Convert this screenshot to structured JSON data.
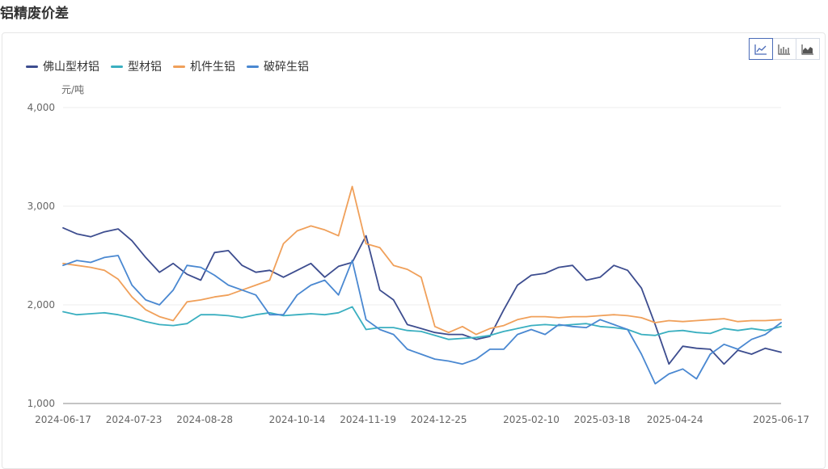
{
  "page_title": "铝精废价差",
  "toolbar": {
    "icons": [
      "line-chart-icon",
      "bar-chart-icon",
      "area-chart-icon"
    ],
    "active": "line-chart-icon",
    "active_color": "#4a6bb8"
  },
  "chart_data": {
    "type": "line",
    "ylabel": "元/吨",
    "ylim": [
      1000,
      4000
    ],
    "yticks": [
      1000,
      2000,
      3000,
      4000
    ],
    "ytick_labels": [
      "1,000",
      "2,000",
      "3,000",
      "4,000"
    ],
    "grid": true,
    "legend_position": "top-left",
    "x_start": "2024-06-17",
    "x_end": "2025-06-17",
    "xtick_labels": [
      "2024-06-17",
      "2024-07-23",
      "2024-08-28",
      "2024-10-14",
      "2024-11-19",
      "2024-12-25",
      "2025-02-10",
      "2025-03-18",
      "2025-04-24",
      "2025-06-17"
    ],
    "x": [
      "2024-06-17",
      "2024-06-24",
      "2024-07-01",
      "2024-07-08",
      "2024-07-15",
      "2024-07-22",
      "2024-07-29",
      "2024-08-05",
      "2024-08-12",
      "2024-08-19",
      "2024-08-26",
      "2024-09-02",
      "2024-09-09",
      "2024-09-16",
      "2024-09-23",
      "2024-09-30",
      "2024-10-07",
      "2024-10-14",
      "2024-10-21",
      "2024-10-28",
      "2024-11-04",
      "2024-11-11",
      "2024-11-18",
      "2024-11-25",
      "2024-12-02",
      "2024-12-09",
      "2024-12-16",
      "2024-12-23",
      "2024-12-30",
      "2025-01-06",
      "2025-01-13",
      "2025-01-20",
      "2025-01-27",
      "2025-02-03",
      "2025-02-10",
      "2025-02-17",
      "2025-02-24",
      "2025-03-03",
      "2025-03-10",
      "2025-03-17",
      "2025-03-24",
      "2025-03-31",
      "2025-04-07",
      "2025-04-14",
      "2025-04-21",
      "2025-04-28",
      "2025-05-05",
      "2025-05-12",
      "2025-05-19",
      "2025-05-26",
      "2025-06-02",
      "2025-06-09",
      "2025-06-17"
    ],
    "series": [
      {
        "name": "佛山型材铝",
        "color": "#3d4d8f",
        "values": [
          2780,
          2720,
          2690,
          2740,
          2770,
          2650,
          2480,
          2330,
          2420,
          2310,
          2250,
          2530,
          2550,
          2400,
          2330,
          2350,
          2280,
          2350,
          2420,
          2280,
          2390,
          2430,
          2700,
          2150,
          2050,
          1800,
          1760,
          1720,
          1700,
          1700,
          1650,
          1680,
          1950,
          2200,
          2300,
          2320,
          2380,
          2400,
          2250,
          2280,
          2400,
          2350,
          2170,
          1800,
          1400,
          1580,
          1560,
          1550,
          1400,
          1540,
          1500,
          1560,
          1520
        ]
      },
      {
        "name": "型材铝",
        "color": "#3aafc0",
        "values": [
          1930,
          1900,
          1910,
          1920,
          1900,
          1870,
          1830,
          1800,
          1790,
          1810,
          1900,
          1900,
          1890,
          1870,
          1900,
          1920,
          1890,
          1900,
          1910,
          1900,
          1920,
          1980,
          1750,
          1770,
          1770,
          1740,
          1730,
          1690,
          1650,
          1660,
          1670,
          1690,
          1730,
          1760,
          1790,
          1800,
          1790,
          1800,
          1810,
          1780,
          1770,
          1750,
          1700,
          1690,
          1730,
          1740,
          1720,
          1710,
          1760,
          1740,
          1760,
          1740,
          1780
        ]
      },
      {
        "name": "机件生铝",
        "color": "#f0a05a",
        "values": [
          2420,
          2400,
          2380,
          2350,
          2260,
          2080,
          1950,
          1880,
          1840,
          2030,
          2050,
          2080,
          2100,
          2150,
          2200,
          2250,
          2620,
          2750,
          2800,
          2760,
          2700,
          3200,
          2620,
          2580,
          2400,
          2360,
          2280,
          1780,
          1720,
          1780,
          1700,
          1760,
          1790,
          1850,
          1880,
          1880,
          1870,
          1880,
          1880,
          1890,
          1900,
          1890,
          1870,
          1820,
          1840,
          1830,
          1840,
          1850,
          1860,
          1830,
          1840,
          1840,
          1850
        ]
      },
      {
        "name": "破碎生铝",
        "color": "#4a88d1",
        "values": [
          2400,
          2450,
          2430,
          2480,
          2500,
          2200,
          2050,
          2000,
          2150,
          2400,
          2380,
          2300,
          2200,
          2150,
          2100,
          1900,
          1900,
          2100,
          2200,
          2250,
          2100,
          2450,
          1850,
          1750,
          1700,
          1550,
          1500,
          1450,
          1430,
          1400,
          1450,
          1550,
          1550,
          1700,
          1750,
          1700,
          1800,
          1780,
          1770,
          1850,
          1800,
          1750,
          1500,
          1200,
          1300,
          1350,
          1250,
          1500,
          1600,
          1550,
          1650,
          1700,
          1820
        ]
      }
    ]
  }
}
